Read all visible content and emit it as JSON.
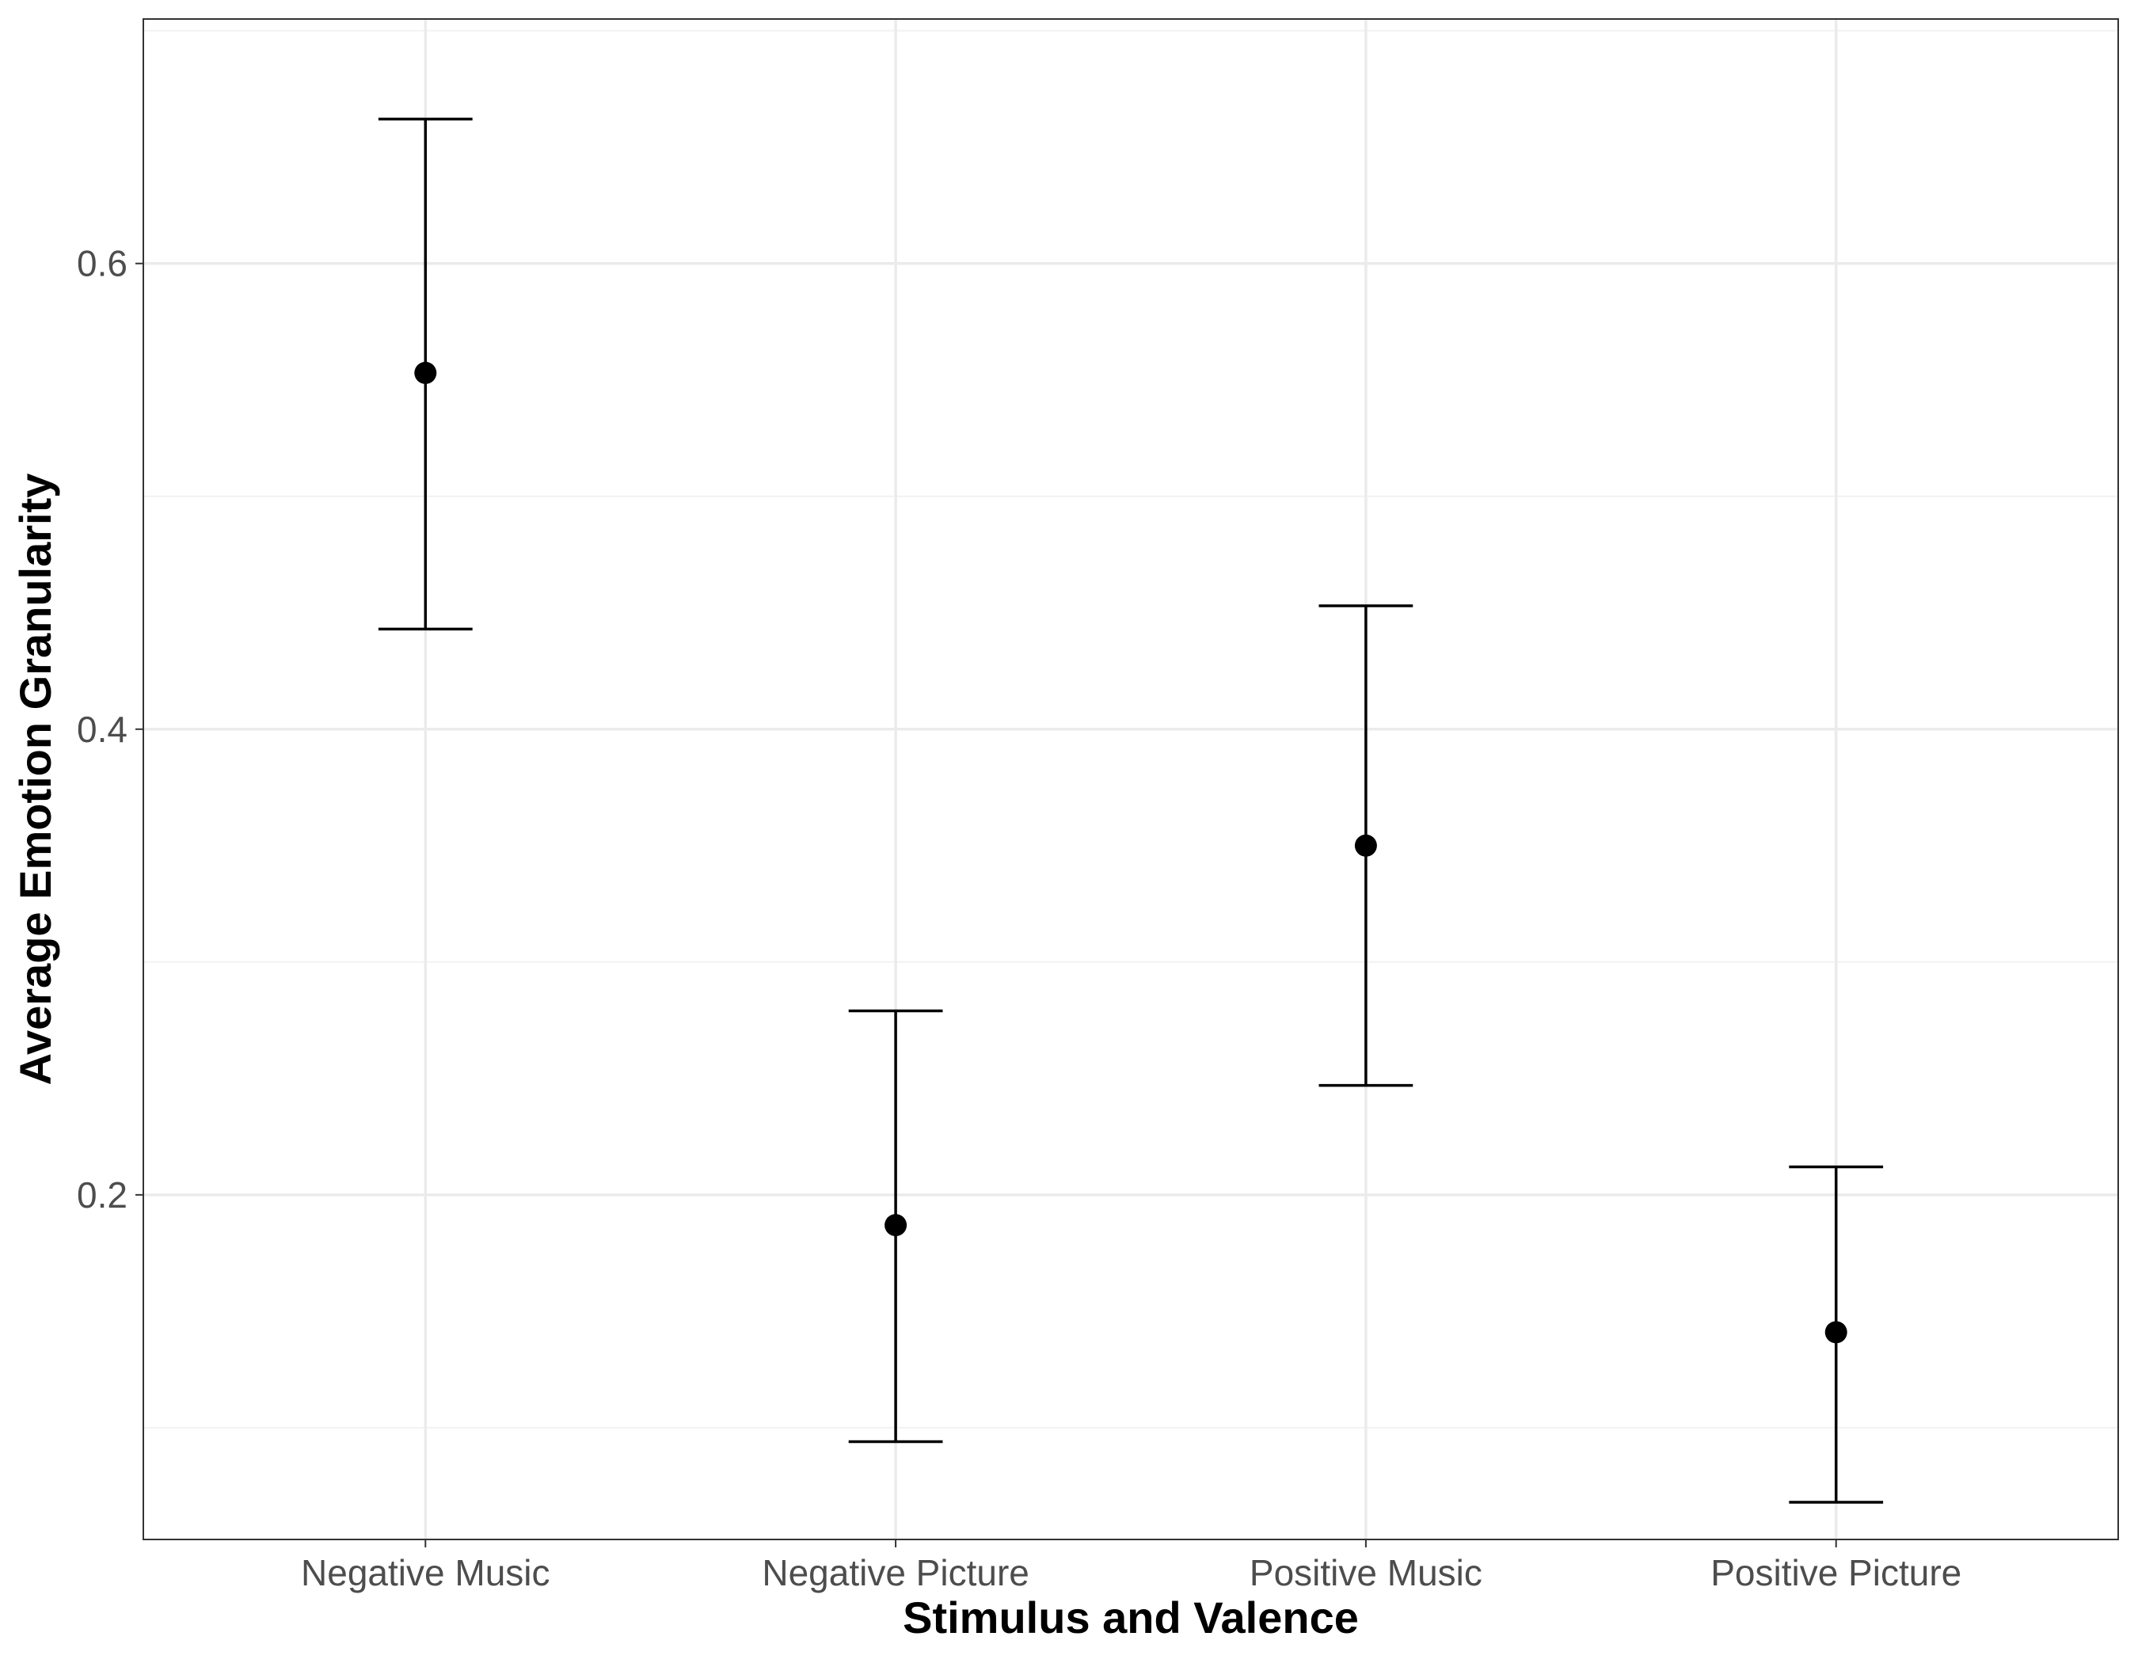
{
  "chart_data": {
    "type": "scatter",
    "title": "",
    "xlabel": "Stimulus and Valence",
    "ylabel": "Average Emotion Granularity",
    "categories": [
      "Negative Music",
      "Negative Picture",
      "Positive Music",
      "Positive Picture"
    ],
    "points": [
      {
        "category": "Negative Music",
        "mean": 0.553,
        "lower": 0.443,
        "upper": 0.662
      },
      {
        "category": "Negative Picture",
        "mean": 0.187,
        "lower": 0.094,
        "upper": 0.279
      },
      {
        "category": "Positive Music",
        "mean": 0.35,
        "lower": 0.247,
        "upper": 0.453
      },
      {
        "category": "Positive Picture",
        "mean": 0.141,
        "lower": 0.068,
        "upper": 0.212
      }
    ],
    "y_ticks": [
      0.2,
      0.4,
      0.6
    ],
    "y_tick_labels": [
      "0.2",
      "0.4",
      "0.6"
    ],
    "ylim": [
      0.052,
      0.705
    ],
    "grid": true,
    "error_bars": true
  }
}
